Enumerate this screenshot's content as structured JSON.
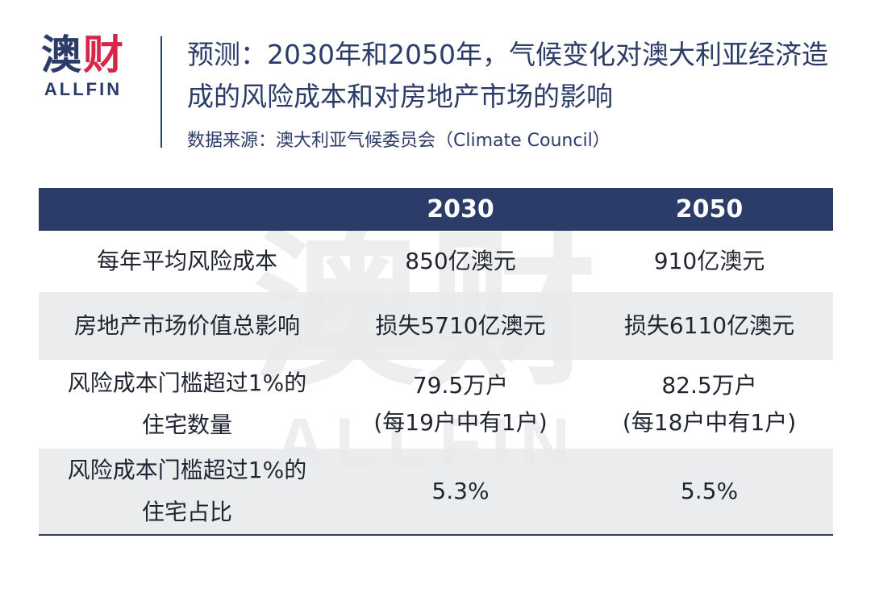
{
  "logo": {
    "cn_left": "澳",
    "cn_right": "财",
    "en": "ALLFIN"
  },
  "title": "预测：2030年和2050年，气候变化对澳大利亚经济造成的风险成本和对房地产市场的影响",
  "source": "数据来源：澳大利亚气候委员会（Climate Council）",
  "watermark": {
    "cn": "澳财",
    "en": "ALLFIN"
  },
  "table": {
    "headers": [
      "",
      "2030",
      "2050"
    ],
    "rows": [
      {
        "label_lines": [
          "每年平均风险成本"
        ],
        "c2030_lines": [
          "850亿澳元"
        ],
        "c2050_lines": [
          "910亿澳元"
        ]
      },
      {
        "label_lines": [
          "房地产市场价值总影响"
        ],
        "c2030_lines": [
          "损失5710亿澳元"
        ],
        "c2050_lines": [
          "损失6110亿澳元"
        ]
      },
      {
        "label_lines": [
          "风险成本门槛超过1%的",
          "住宅数量"
        ],
        "c2030_lines": [
          "79.5万户",
          "(每19户中有1户)"
        ],
        "c2050_lines": [
          "82.5万户",
          "(每18户中有1户)"
        ]
      },
      {
        "label_lines": [
          "风险成本门槛超过1%的",
          "住宅占比"
        ],
        "c2030_lines": [
          "5.3%"
        ],
        "c2050_lines": [
          "5.5%"
        ]
      }
    ]
  },
  "colors": {
    "navy": "#2c3c68",
    "accent_red": "#d6264a",
    "row_alt": "#e8e9eb"
  }
}
